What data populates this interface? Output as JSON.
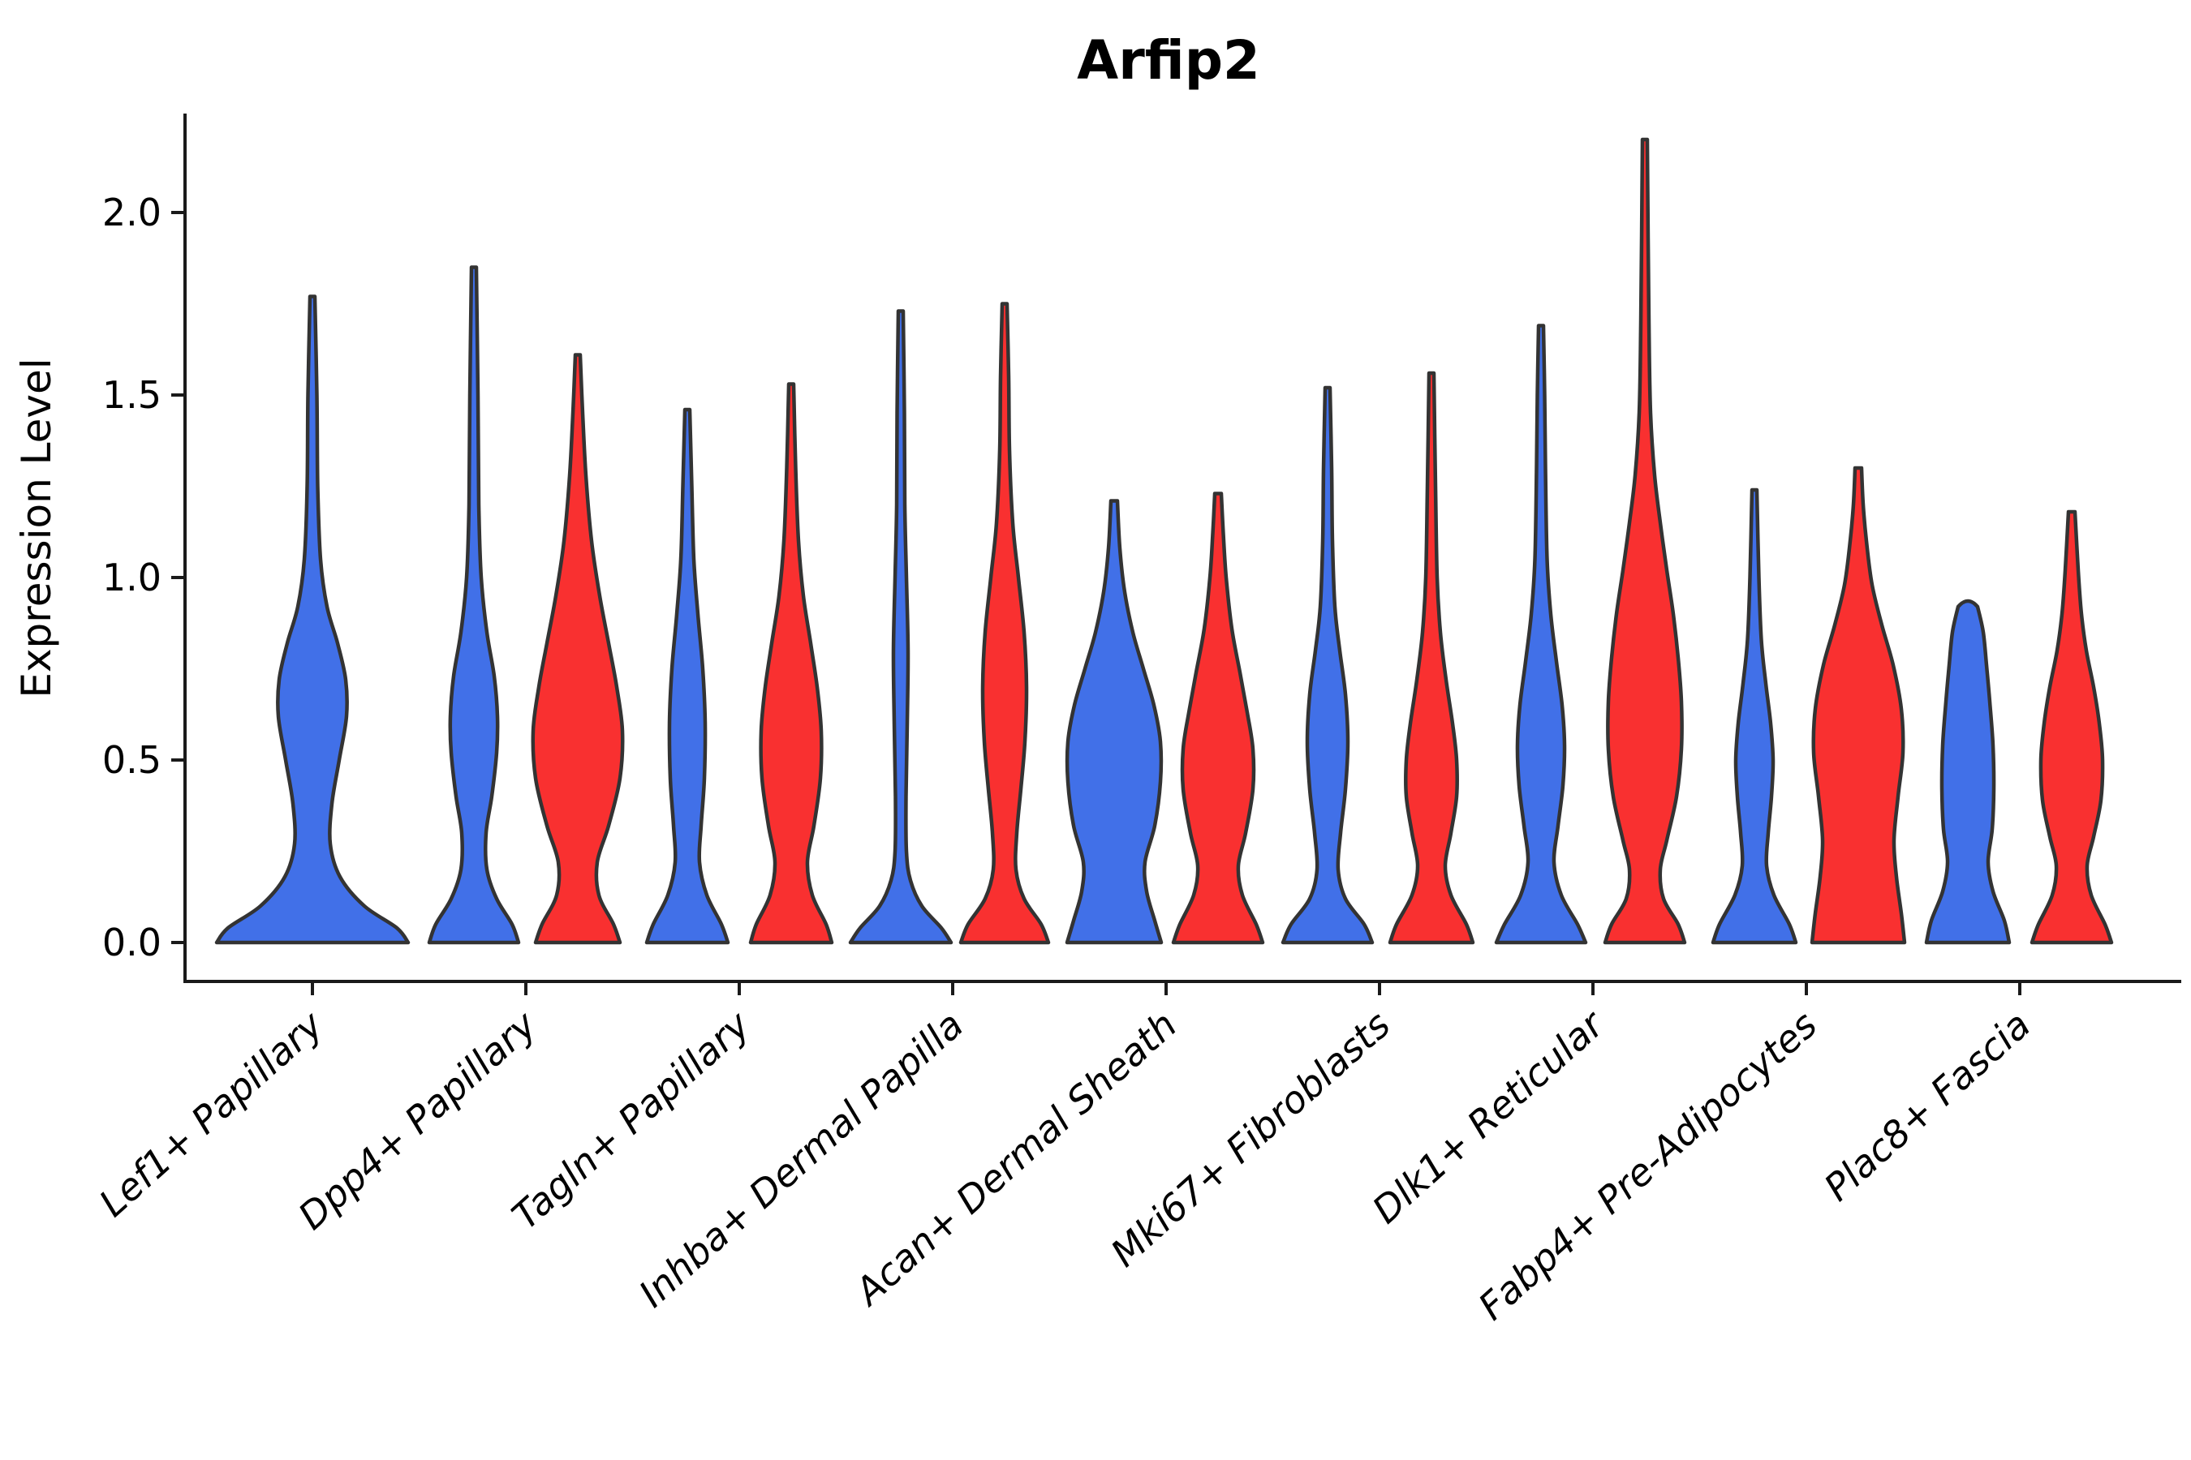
{
  "chart_data": {
    "type": "violin",
    "title": "Arfip2",
    "ylabel": "Expression Level",
    "xlabel": "",
    "grid": false,
    "legend": "none",
    "ylim": [
      -0.11,
      2.27
    ],
    "yticks": [
      "0.0",
      "0.5",
      "1.0",
      "1.5",
      "2.0"
    ],
    "ytick_values": [
      0.0,
      0.5,
      1.0,
      1.5,
      2.0
    ],
    "categories": [
      "Lef1+ Papillary",
      "Dpp4+ Papillary",
      "Tagln+ Papillary",
      "Inhba+ Dermal Papilla",
      "Acan+ Dermal Sheath",
      "Mki67+ Fibroblasts",
      "Dlk1+ Reticular",
      "Fabp4+ Pre-Adipocytes",
      "Plac8+ Fascia"
    ],
    "groups": [
      {
        "id": "blue",
        "color": "#4170E8"
      },
      {
        "id": "red",
        "color": "#F93030"
      }
    ],
    "stroke_color": "#333333",
    "axis_color": "#1a1a1a",
    "series": [
      {
        "name": "blue",
        "max_expression": [
          1.77,
          1.85,
          1.46,
          1.73,
          1.21,
          1.52,
          1.69,
          1.24,
          0.92
        ]
      },
      {
        "name": "red",
        "max_expression": [
          null,
          1.61,
          1.53,
          1.75,
          1.23,
          1.56,
          2.2,
          1.3,
          1.18
        ]
      }
    ],
    "violins": [
      {
        "category_index": 0,
        "group": "blue",
        "single": true,
        "max": 1.77,
        "density_profile": [
          [
            0,
            118
          ],
          [
            0.04,
            104
          ],
          [
            0.1,
            64
          ],
          [
            0.18,
            34
          ],
          [
            0.27,
            22
          ],
          [
            0.38,
            24
          ],
          [
            0.5,
            33
          ],
          [
            0.62,
            42
          ],
          [
            0.72,
            41
          ],
          [
            0.82,
            31
          ],
          [
            0.92,
            18
          ],
          [
            1.05,
            10
          ],
          [
            1.25,
            6.5
          ],
          [
            1.5,
            5.5
          ],
          [
            1.77,
            3
          ]
        ]
      },
      {
        "category_index": 1,
        "group": "blue",
        "max": 1.85,
        "density_profile": [
          [
            0,
            55
          ],
          [
            0.05,
            47
          ],
          [
            0.12,
            28
          ],
          [
            0.2,
            16
          ],
          [
            0.3,
            15
          ],
          [
            0.4,
            22
          ],
          [
            0.52,
            28
          ],
          [
            0.62,
            29
          ],
          [
            0.73,
            25
          ],
          [
            0.85,
            16
          ],
          [
            1,
            9
          ],
          [
            1.2,
            6
          ],
          [
            1.5,
            5
          ],
          [
            1.85,
            3
          ]
        ]
      },
      {
        "category_index": 1,
        "group": "red",
        "max": 1.61,
        "density_profile": [
          [
            0,
            52
          ],
          [
            0.05,
            44
          ],
          [
            0.13,
            26
          ],
          [
            0.22,
            24
          ],
          [
            0.32,
            38
          ],
          [
            0.45,
            52
          ],
          [
            0.58,
            55
          ],
          [
            0.7,
            48
          ],
          [
            0.82,
            38
          ],
          [
            0.95,
            27
          ],
          [
            1.1,
            17
          ],
          [
            1.28,
            10
          ],
          [
            1.45,
            6
          ],
          [
            1.61,
            3
          ]
        ]
      },
      {
        "category_index": 2,
        "group": "blue",
        "max": 1.46,
        "density_profile": [
          [
            0,
            50
          ],
          [
            0.05,
            42
          ],
          [
            0.13,
            24
          ],
          [
            0.22,
            15
          ],
          [
            0.32,
            17
          ],
          [
            0.45,
            21
          ],
          [
            0.6,
            22
          ],
          [
            0.75,
            19
          ],
          [
            0.9,
            13
          ],
          [
            1.05,
            8
          ],
          [
            1.25,
            5.5
          ],
          [
            1.46,
            3
          ]
        ]
      },
      {
        "category_index": 2,
        "group": "red",
        "max": 1.53,
        "density_profile": [
          [
            0,
            50
          ],
          [
            0.05,
            43
          ],
          [
            0.13,
            26
          ],
          [
            0.22,
            20
          ],
          [
            0.32,
            28
          ],
          [
            0.45,
            36
          ],
          [
            0.58,
            37
          ],
          [
            0.7,
            32
          ],
          [
            0.82,
            24
          ],
          [
            0.95,
            15
          ],
          [
            1.1,
            9
          ],
          [
            1.3,
            5.5
          ],
          [
            1.53,
            3
          ]
        ]
      },
      {
        "category_index": 3,
        "group": "blue",
        "max": 1.73,
        "density_profile": [
          [
            0,
            62
          ],
          [
            0.04,
            50
          ],
          [
            0.1,
            26
          ],
          [
            0.17,
            12
          ],
          [
            0.25,
            7
          ],
          [
            0.4,
            6.5
          ],
          [
            0.6,
            8
          ],
          [
            0.8,
            9
          ],
          [
            1,
            7
          ],
          [
            1.2,
            5
          ],
          [
            1.45,
            4.5
          ],
          [
            1.73,
            3
          ]
        ]
      },
      {
        "category_index": 3,
        "group": "red",
        "max": 1.75,
        "density_profile": [
          [
            0,
            54
          ],
          [
            0.05,
            45
          ],
          [
            0.12,
            24
          ],
          [
            0.2,
            14
          ],
          [
            0.3,
            15
          ],
          [
            0.42,
            20
          ],
          [
            0.55,
            25
          ],
          [
            0.7,
            27
          ],
          [
            0.85,
            24
          ],
          [
            1,
            17
          ],
          [
            1.15,
            10
          ],
          [
            1.35,
            6
          ],
          [
            1.55,
            5
          ],
          [
            1.75,
            3
          ]
        ]
      },
      {
        "category_index": 4,
        "group": "blue",
        "max": 1.21,
        "density_profile": [
          [
            0,
            58
          ],
          [
            0.06,
            50
          ],
          [
            0.14,
            40
          ],
          [
            0.22,
            38
          ],
          [
            0.32,
            50
          ],
          [
            0.44,
            57
          ],
          [
            0.55,
            57
          ],
          [
            0.65,
            49
          ],
          [
            0.75,
            36
          ],
          [
            0.85,
            23
          ],
          [
            0.96,
            13
          ],
          [
            1.08,
            7
          ],
          [
            1.21,
            4
          ]
        ]
      },
      {
        "category_index": 4,
        "group": "red",
        "max": 1.23,
        "density_profile": [
          [
            0,
            55
          ],
          [
            0.05,
            47
          ],
          [
            0.13,
            30
          ],
          [
            0.21,
            25
          ],
          [
            0.3,
            34
          ],
          [
            0.42,
            43
          ],
          [
            0.53,
            43
          ],
          [
            0.63,
            36
          ],
          [
            0.74,
            27
          ],
          [
            0.86,
            17
          ],
          [
            1,
            10
          ],
          [
            1.12,
            6.5
          ],
          [
            1.23,
            4
          ]
        ]
      },
      {
        "category_index": 5,
        "group": "blue",
        "max": 1.52,
        "density_profile": [
          [
            0,
            55
          ],
          [
            0.05,
            45
          ],
          [
            0.12,
            22
          ],
          [
            0.2,
            13
          ],
          [
            0.3,
            16
          ],
          [
            0.42,
            22
          ],
          [
            0.55,
            25
          ],
          [
            0.68,
            22
          ],
          [
            0.8,
            15
          ],
          [
            0.92,
            9
          ],
          [
            1.1,
            6
          ],
          [
            1.3,
            5
          ],
          [
            1.52,
            3
          ]
        ]
      },
      {
        "category_index": 5,
        "group": "red",
        "max": 1.56,
        "density_profile": [
          [
            0,
            51
          ],
          [
            0.05,
            43
          ],
          [
            0.13,
            24
          ],
          [
            0.21,
            17
          ],
          [
            0.3,
            24
          ],
          [
            0.4,
            31
          ],
          [
            0.5,
            31
          ],
          [
            0.6,
            26
          ],
          [
            0.72,
            18
          ],
          [
            0.85,
            11
          ],
          [
            1,
            7
          ],
          [
            1.25,
            5
          ],
          [
            1.56,
            3
          ]
        ]
      },
      {
        "category_index": 6,
        "group": "blue",
        "max": 1.69,
        "density_profile": [
          [
            0,
            55
          ],
          [
            0.05,
            45
          ],
          [
            0.13,
            25
          ],
          [
            0.22,
            16
          ],
          [
            0.32,
            21
          ],
          [
            0.43,
            27
          ],
          [
            0.54,
            29
          ],
          [
            0.65,
            26
          ],
          [
            0.77,
            19
          ],
          [
            0.9,
            12
          ],
          [
            1.05,
            7.5
          ],
          [
            1.3,
            5.5
          ],
          [
            1.5,
            4.5
          ],
          [
            1.69,
            3
          ]
        ]
      },
      {
        "category_index": 6,
        "group": "red",
        "max": 2.2,
        "density_profile": [
          [
            0,
            49
          ],
          [
            0.05,
            41
          ],
          [
            0.12,
            23
          ],
          [
            0.2,
            19
          ],
          [
            0.28,
            27
          ],
          [
            0.4,
            39
          ],
          [
            0.53,
            45
          ],
          [
            0.66,
            45
          ],
          [
            0.78,
            41
          ],
          [
            0.9,
            35
          ],
          [
            1.02,
            27
          ],
          [
            1.15,
            19
          ],
          [
            1.28,
            12
          ],
          [
            1.45,
            7
          ],
          [
            1.7,
            5
          ],
          [
            2.2,
            3
          ]
        ]
      },
      {
        "category_index": 7,
        "group": "blue",
        "max": 1.24,
        "density_profile": [
          [
            0,
            51
          ],
          [
            0.05,
            43
          ],
          [
            0.13,
            24
          ],
          [
            0.21,
            15
          ],
          [
            0.3,
            17
          ],
          [
            0.4,
            21
          ],
          [
            0.5,
            23
          ],
          [
            0.6,
            20
          ],
          [
            0.71,
            14
          ],
          [
            0.83,
            8.5
          ],
          [
            1,
            5.5
          ],
          [
            1.24,
            3
          ]
        ]
      },
      {
        "category_index": 7,
        "group": "red",
        "max": 1.3,
        "density_profile": [
          [
            0,
            57
          ],
          [
            0.08,
            53
          ],
          [
            0.18,
            47
          ],
          [
            0.28,
            44
          ],
          [
            0.4,
            49
          ],
          [
            0.52,
            55
          ],
          [
            0.64,
            53
          ],
          [
            0.76,
            43
          ],
          [
            0.87,
            29
          ],
          [
            0.98,
            17
          ],
          [
            1.1,
            10
          ],
          [
            1.2,
            6
          ],
          [
            1.3,
            4
          ]
        ]
      },
      {
        "category_index": 8,
        "group": "blue",
        "max": 0.92,
        "density_profile": [
          [
            0,
            51
          ],
          [
            0.06,
            45
          ],
          [
            0.14,
            31
          ],
          [
            0.22,
            25
          ],
          [
            0.31,
            30
          ],
          [
            0.42,
            32
          ],
          [
            0.54,
            31
          ],
          [
            0.66,
            27
          ],
          [
            0.76,
            23
          ],
          [
            0.85,
            19
          ],
          [
            0.92,
            12
          ]
        ]
      },
      {
        "category_index": 8,
        "group": "red",
        "max": 1.18,
        "density_profile": [
          [
            0,
            49
          ],
          [
            0.05,
            41
          ],
          [
            0.13,
            24
          ],
          [
            0.21,
            19
          ],
          [
            0.29,
            27
          ],
          [
            0.39,
            36
          ],
          [
            0.5,
            38
          ],
          [
            0.6,
            34
          ],
          [
            0.7,
            27
          ],
          [
            0.8,
            18
          ],
          [
            0.9,
            12
          ],
          [
            1.02,
            8
          ],
          [
            1.18,
            4
          ]
        ]
      }
    ]
  }
}
